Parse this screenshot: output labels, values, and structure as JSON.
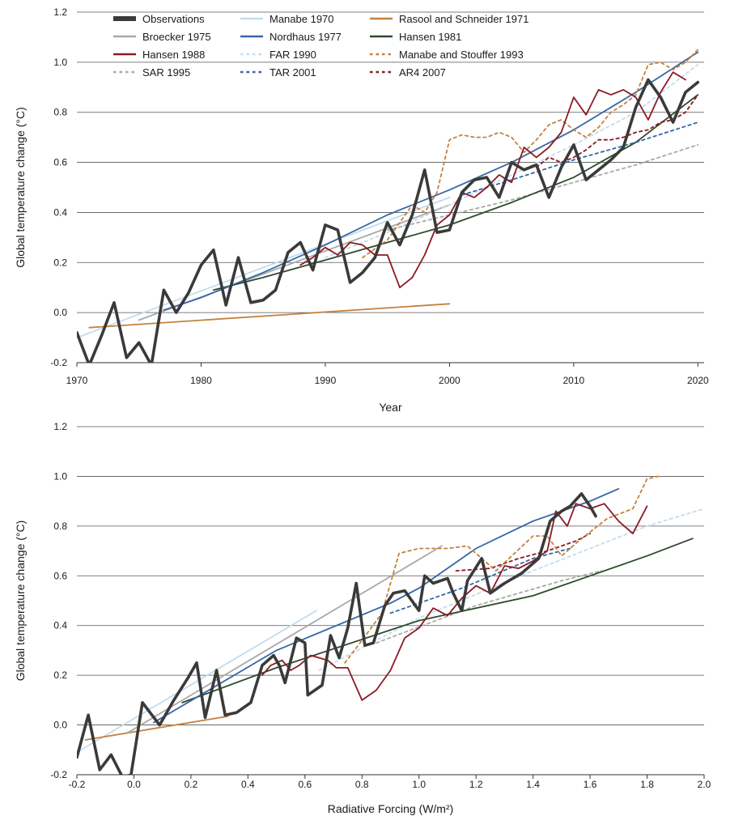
{
  "legend": [
    {
      "name": "Observations",
      "color": "#3a3a3a",
      "dash": false,
      "thick": true
    },
    {
      "name": "Manabe 1970",
      "color": "#c3dcee",
      "dash": false
    },
    {
      "name": "Rasool and Schneider 1971",
      "color": "#c4813f",
      "dash": false
    },
    {
      "name": "Broecker 1975",
      "color": "#a9a9a9",
      "dash": false
    },
    {
      "name": "Nordhaus 1977",
      "color": "#3567a6",
      "dash": false
    },
    {
      "name": "Hansen 1981",
      "color": "#2d4a2b",
      "dash": false
    },
    {
      "name": "Hansen 1988",
      "color": "#8b1a24",
      "dash": false
    },
    {
      "name": "FAR 1990",
      "color": "#c3dcee",
      "dash": true
    },
    {
      "name": "Manabe and Stouffer 1993",
      "color": "#c4813f",
      "dash": true
    },
    {
      "name": "SAR 1995",
      "color": "#a9a9a9",
      "dash": true
    },
    {
      "name": "TAR 2001",
      "color": "#3567a6",
      "dash": true
    },
    {
      "name": "AR4 2007",
      "color": "#8b1a24",
      "dash": true
    }
  ],
  "chart_data": [
    {
      "type": "line",
      "xlabel": "Year",
      "ylabel": "Global temperature change (°C)",
      "xlim": [
        1970,
        2020.5
      ],
      "ylim": [
        -0.2,
        1.2
      ],
      "xticks": [
        "1970",
        "1980",
        "1990",
        "2000",
        "2010",
        "2020"
      ],
      "yticks": [
        "-0.2",
        "0.0",
        "0.2",
        "0.4",
        "0.6",
        "0.8",
        "1.0",
        "1.2"
      ],
      "grid": "horizontal",
      "legend_position": "top",
      "series": [
        {
          "name": "Manabe 1970",
          "x": [
            1970,
            2000
          ],
          "y": [
            -0.1,
            0.46
          ]
        },
        {
          "name": "Rasool and Schneider 1971",
          "x": [
            1971,
            2000
          ],
          "y": [
            -0.06,
            0.035
          ]
        },
        {
          "name": "Broecker 1975",
          "x": [
            1975,
            2000
          ],
          "y": [
            -0.03,
            0.43
          ]
        },
        {
          "name": "Nordhaus 1977",
          "x": [
            1977,
            1980,
            1985,
            1990,
            1995,
            2000,
            2005,
            2010,
            2015,
            2020
          ],
          "y": [
            0.01,
            0.06,
            0.16,
            0.27,
            0.39,
            0.49,
            0.6,
            0.73,
            0.88,
            1.04
          ]
        },
        {
          "name": "Hansen 1981",
          "x": [
            1981,
            1985,
            1990,
            1995,
            2000,
            2005,
            2010,
            2015,
            2020
          ],
          "y": [
            0.09,
            0.14,
            0.21,
            0.28,
            0.35,
            0.44,
            0.54,
            0.68,
            0.87
          ]
        },
        {
          "name": "FAR 1990",
          "x": [
            1990,
            1995,
            2000,
            2005,
            2010,
            2015,
            2020
          ],
          "y": [
            0.22,
            0.32,
            0.43,
            0.55,
            0.67,
            0.8,
            0.99
          ]
        },
        {
          "name": "SAR 1995",
          "x": [
            1995,
            2000,
            2005,
            2010,
            2015,
            2020
          ],
          "y": [
            0.33,
            0.39,
            0.45,
            0.52,
            0.59,
            0.67
          ]
        },
        {
          "name": "TAR 2001",
          "x": [
            2001,
            2005,
            2010,
            2015,
            2020
          ],
          "y": [
            0.47,
            0.53,
            0.61,
            0.68,
            0.76
          ]
        },
        {
          "name": "AR4 2007",
          "x": [
            2007,
            2008,
            2009,
            2010,
            2011,
            2012,
            2013,
            2014,
            2015,
            2016,
            2017,
            2018,
            2019,
            2020
          ],
          "y": [
            0.58,
            0.62,
            0.6,
            0.62,
            0.65,
            0.69,
            0.69,
            0.7,
            0.72,
            0.73,
            0.76,
            0.77,
            0.8,
            0.87
          ]
        },
        {
          "name": "Manabe and Stouffer 1993",
          "x": [
            1993,
            1995,
            1997,
            1998,
            1999,
            2000,
            2001,
            2002,
            2003,
            2004,
            2005,
            2006,
            2007,
            2008,
            2009,
            2010,
            2011,
            2012,
            2013,
            2014,
            2015,
            2016,
            2017,
            2018,
            2019,
            2020
          ],
          "y": [
            0.22,
            0.29,
            0.43,
            0.4,
            0.48,
            0.69,
            0.71,
            0.7,
            0.7,
            0.72,
            0.7,
            0.64,
            0.69,
            0.75,
            0.77,
            0.73,
            0.7,
            0.74,
            0.8,
            0.83,
            0.87,
            0.99,
            1.0,
            0.97,
            1.0,
            1.05
          ]
        },
        {
          "name": "Hansen 1988",
          "x": [
            1988,
            1989,
            1990,
            1991,
            1992,
            1993,
            1994,
            1995,
            1996,
            1997,
            1998,
            1999,
            2000,
            2001,
            2002,
            2003,
            2004,
            2005,
            2006,
            2007,
            2008,
            2009,
            2010,
            2011,
            2012,
            2013,
            2014,
            2015,
            2016,
            2017,
            2018,
            2019
          ],
          "y": [
            0.19,
            0.22,
            0.26,
            0.23,
            0.28,
            0.27,
            0.23,
            0.23,
            0.1,
            0.14,
            0.23,
            0.35,
            0.39,
            0.48,
            0.46,
            0.5,
            0.55,
            0.52,
            0.66,
            0.62,
            0.66,
            0.72,
            0.86,
            0.79,
            0.89,
            0.87,
            0.89,
            0.86,
            0.77,
            0.88,
            0.96,
            0.93
          ]
        },
        {
          "name": "Observations",
          "x": [
            1970,
            1971,
            1972,
            1973,
            1974,
            1975,
            1976,
            1977,
            1978,
            1979,
            1980,
            1981,
            1982,
            1983,
            1984,
            1985,
            1986,
            1987,
            1988,
            1989,
            1990,
            1991,
            1992,
            1993,
            1994,
            1995,
            1996,
            1997,
            1998,
            1999,
            2000,
            2001,
            2002,
            2003,
            2004,
            2005,
            2006,
            2007,
            2008,
            2009,
            2010,
            2011,
            2012,
            2013,
            2014,
            2015,
            2016,
            2017,
            2018,
            2019,
            2020
          ],
          "y": [
            -0.08,
            -0.21,
            -0.09,
            0.04,
            -0.18,
            -0.12,
            -0.21,
            0.09,
            0.0,
            0.08,
            0.19,
            0.25,
            0.03,
            0.22,
            0.04,
            0.05,
            0.09,
            0.24,
            0.28,
            0.17,
            0.35,
            0.33,
            0.12,
            0.16,
            0.22,
            0.36,
            0.27,
            0.39,
            0.57,
            0.32,
            0.33,
            0.48,
            0.53,
            0.54,
            0.46,
            0.6,
            0.57,
            0.59,
            0.46,
            0.58,
            0.67,
            0.53,
            0.57,
            0.61,
            0.66,
            0.82,
            0.93,
            0.86,
            0.76,
            0.88,
            0.92
          ]
        }
      ]
    },
    {
      "type": "line",
      "xlabel": "Radiative Forcing (W/m²)",
      "ylabel": "Global temperature change (°C)",
      "xlim": [
        -0.2,
        2.0
      ],
      "ylim": [
        -0.2,
        1.2
      ],
      "xticks": [
        "-0.2",
        "0.0",
        "0.2",
        "0.4",
        "0.6",
        "0.8",
        "1.0",
        "1.2",
        "1.4",
        "1.6",
        "1.8",
        "2.0"
      ],
      "yticks": [
        "-0.2",
        "0.0",
        "0.2",
        "0.4",
        "0.6",
        "0.8",
        "1.0",
        "1.2"
      ],
      "grid": "horizontal",
      "series": [
        {
          "name": "Manabe 1970",
          "x": [
            -0.2,
            0.64
          ],
          "y": [
            -0.11,
            0.46
          ]
        },
        {
          "name": "Rasool and Schneider 1971",
          "x": [
            -0.17,
            0.33
          ],
          "y": [
            -0.06,
            0.035
          ]
        },
        {
          "name": "Broecker 1975",
          "x": [
            -0.02,
            1.08
          ],
          "y": [
            -0.03,
            0.72
          ]
        },
        {
          "name": "Nordhaus 1977",
          "x": [
            0.07,
            0.5,
            0.9,
            1.0,
            1.2,
            1.4,
            1.6,
            1.7
          ],
          "y": [
            0.01,
            0.3,
            0.49,
            0.55,
            0.71,
            0.82,
            0.9,
            0.95
          ]
        },
        {
          "name": "Hansen 1981",
          "x": [
            0.17,
            0.5,
            1.0,
            1.4,
            1.6,
            1.8,
            1.96
          ],
          "y": [
            0.09,
            0.23,
            0.42,
            0.52,
            0.6,
            0.68,
            0.75
          ]
        },
        {
          "name": "FAR 1990",
          "x": [
            0.65,
            1.0,
            1.4,
            1.8,
            2.0
          ],
          "y": [
            0.22,
            0.43,
            0.62,
            0.8,
            0.87
          ]
        },
        {
          "name": "SAR 1995",
          "x": [
            0.85,
            1.2,
            1.5,
            1.64
          ],
          "y": [
            0.33,
            0.48,
            0.58,
            0.62
          ]
        },
        {
          "name": "TAR 2001",
          "x": [
            0.9,
            1.15,
            1.4,
            1.53
          ],
          "y": [
            0.45,
            0.55,
            0.67,
            0.71
          ]
        },
        {
          "name": "AR4 2007",
          "x": [
            1.13,
            1.25,
            1.35,
            1.45,
            1.55,
            1.6
          ],
          "y": [
            0.62,
            0.63,
            0.67,
            0.7,
            0.74,
            0.77
          ]
        },
        {
          "name": "Manabe and Stouffer 1993",
          "x": [
            0.74,
            0.8,
            0.87,
            0.93,
            1.0,
            1.1,
            1.17,
            1.27,
            1.4,
            1.45,
            1.5,
            1.56,
            1.66,
            1.75,
            1.8,
            1.84
          ],
          "y": [
            0.25,
            0.34,
            0.45,
            0.69,
            0.71,
            0.71,
            0.72,
            0.62,
            0.76,
            0.76,
            0.68,
            0.74,
            0.83,
            0.87,
            0.99,
            1.0
          ]
        },
        {
          "name": "Hansen 1988",
          "x": [
            0.45,
            0.48,
            0.52,
            0.55,
            0.58,
            0.62,
            0.65,
            0.68,
            0.71,
            0.75,
            0.8,
            0.85,
            0.9,
            0.95,
            1.0,
            1.05,
            1.1,
            1.15,
            1.2,
            1.25,
            1.3,
            1.35,
            1.4,
            1.45,
            1.48,
            1.52,
            1.55,
            1.6,
            1.65,
            1.7,
            1.75,
            1.8
          ],
          "y": [
            0.2,
            0.24,
            0.26,
            0.22,
            0.24,
            0.28,
            0.27,
            0.26,
            0.23,
            0.23,
            0.1,
            0.14,
            0.22,
            0.35,
            0.39,
            0.47,
            0.44,
            0.51,
            0.56,
            0.53,
            0.64,
            0.63,
            0.66,
            0.7,
            0.86,
            0.8,
            0.89,
            0.87,
            0.89,
            0.82,
            0.77,
            0.88
          ]
        },
        {
          "name": "Observations",
          "x": [
            -0.2,
            -0.16,
            -0.12,
            -0.08,
            -0.04,
            -0.01,
            0.03,
            0.09,
            0.14,
            0.19,
            0.22,
            0.25,
            0.29,
            0.32,
            0.36,
            0.41,
            0.45,
            0.49,
            0.51,
            0.53,
            0.57,
            0.6,
            0.61,
            0.66,
            0.69,
            0.72,
            0.75,
            0.78,
            0.81,
            0.84,
            0.88,
            0.91,
            0.95,
            1.0,
            1.02,
            1.05,
            1.1,
            1.12,
            1.15,
            1.17,
            1.22,
            1.25,
            1.3,
            1.36,
            1.42,
            1.46,
            1.5,
            1.53,
            1.57,
            1.6,
            1.62
          ],
          "y": [
            -0.13,
            0.04,
            -0.18,
            -0.12,
            -0.21,
            -0.2,
            0.09,
            0.0,
            0.1,
            0.19,
            0.25,
            0.03,
            0.22,
            0.04,
            0.05,
            0.09,
            0.24,
            0.28,
            0.24,
            0.17,
            0.35,
            0.33,
            0.12,
            0.16,
            0.36,
            0.27,
            0.39,
            0.57,
            0.32,
            0.33,
            0.48,
            0.53,
            0.54,
            0.46,
            0.6,
            0.57,
            0.59,
            0.53,
            0.46,
            0.58,
            0.67,
            0.53,
            0.57,
            0.61,
            0.67,
            0.82,
            0.86,
            0.88,
            0.93,
            0.88,
            0.84
          ]
        }
      ]
    }
  ]
}
